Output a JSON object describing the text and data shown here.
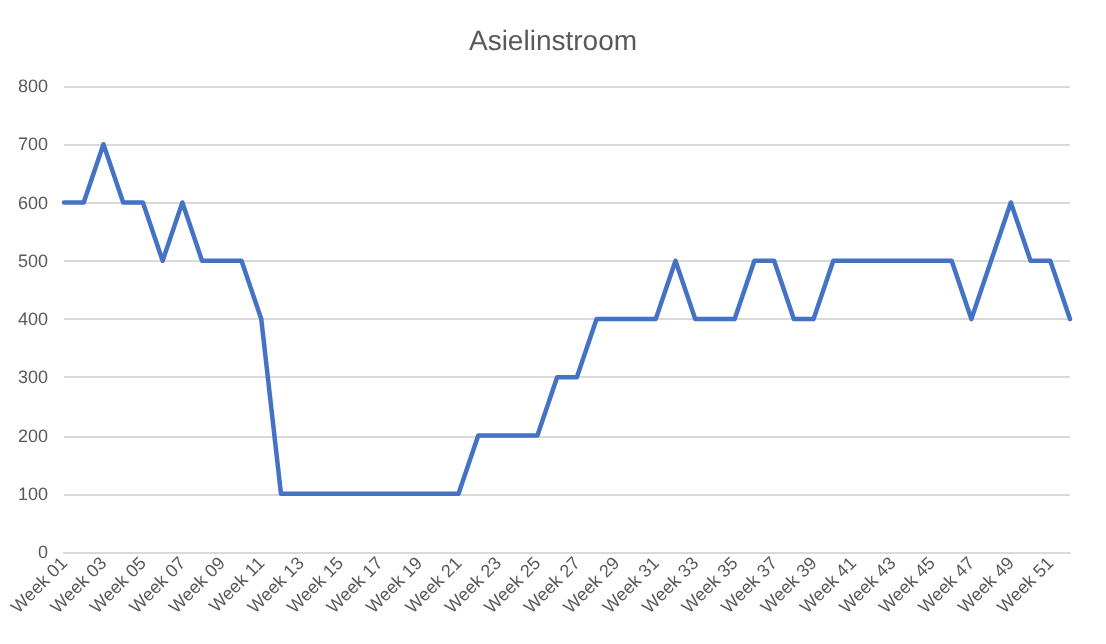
{
  "chart_data": {
    "type": "line",
    "title": "Asielinstroom",
    "categories": [
      "Week 01",
      null,
      "Week 03",
      null,
      "Week 05",
      null,
      "Week 07",
      null,
      "Week 09",
      null,
      "Week 11",
      null,
      "Week 13",
      null,
      "Week 15",
      null,
      "Week 17",
      null,
      "Week 19",
      null,
      "Week 21",
      null,
      "Week 23",
      null,
      "Week 25",
      null,
      "Week 27",
      null,
      "Week 29",
      null,
      "Week 31",
      null,
      "Week 33",
      null,
      "Week 35",
      null,
      "Week 37",
      null,
      "Week 39",
      null,
      "Week 41",
      null,
      "Week 43",
      null,
      "Week 45",
      null,
      "Week 47",
      null,
      "Week 49",
      null,
      "Week 51",
      null
    ],
    "series": [
      {
        "color": "#4472c4",
        "values": [
          600,
          600,
          700,
          600,
          600,
          500,
          600,
          500,
          500,
          500,
          400,
          100,
          100,
          100,
          100,
          100,
          100,
          100,
          100,
          100,
          100,
          200,
          200,
          200,
          200,
          300,
          300,
          400,
          400,
          400,
          400,
          500,
          400,
          400,
          400,
          500,
          500,
          400,
          400,
          500,
          500,
          500,
          500,
          500,
          500,
          500,
          400,
          500,
          600,
          500,
          500,
          400
        ]
      }
    ],
    "ylim": [
      0,
      800
    ],
    "yticks": [
      0,
      100,
      200,
      300,
      400,
      500,
      600,
      700,
      800
    ],
    "grid": "y",
    "marker": "none",
    "line_style": "solid"
  }
}
